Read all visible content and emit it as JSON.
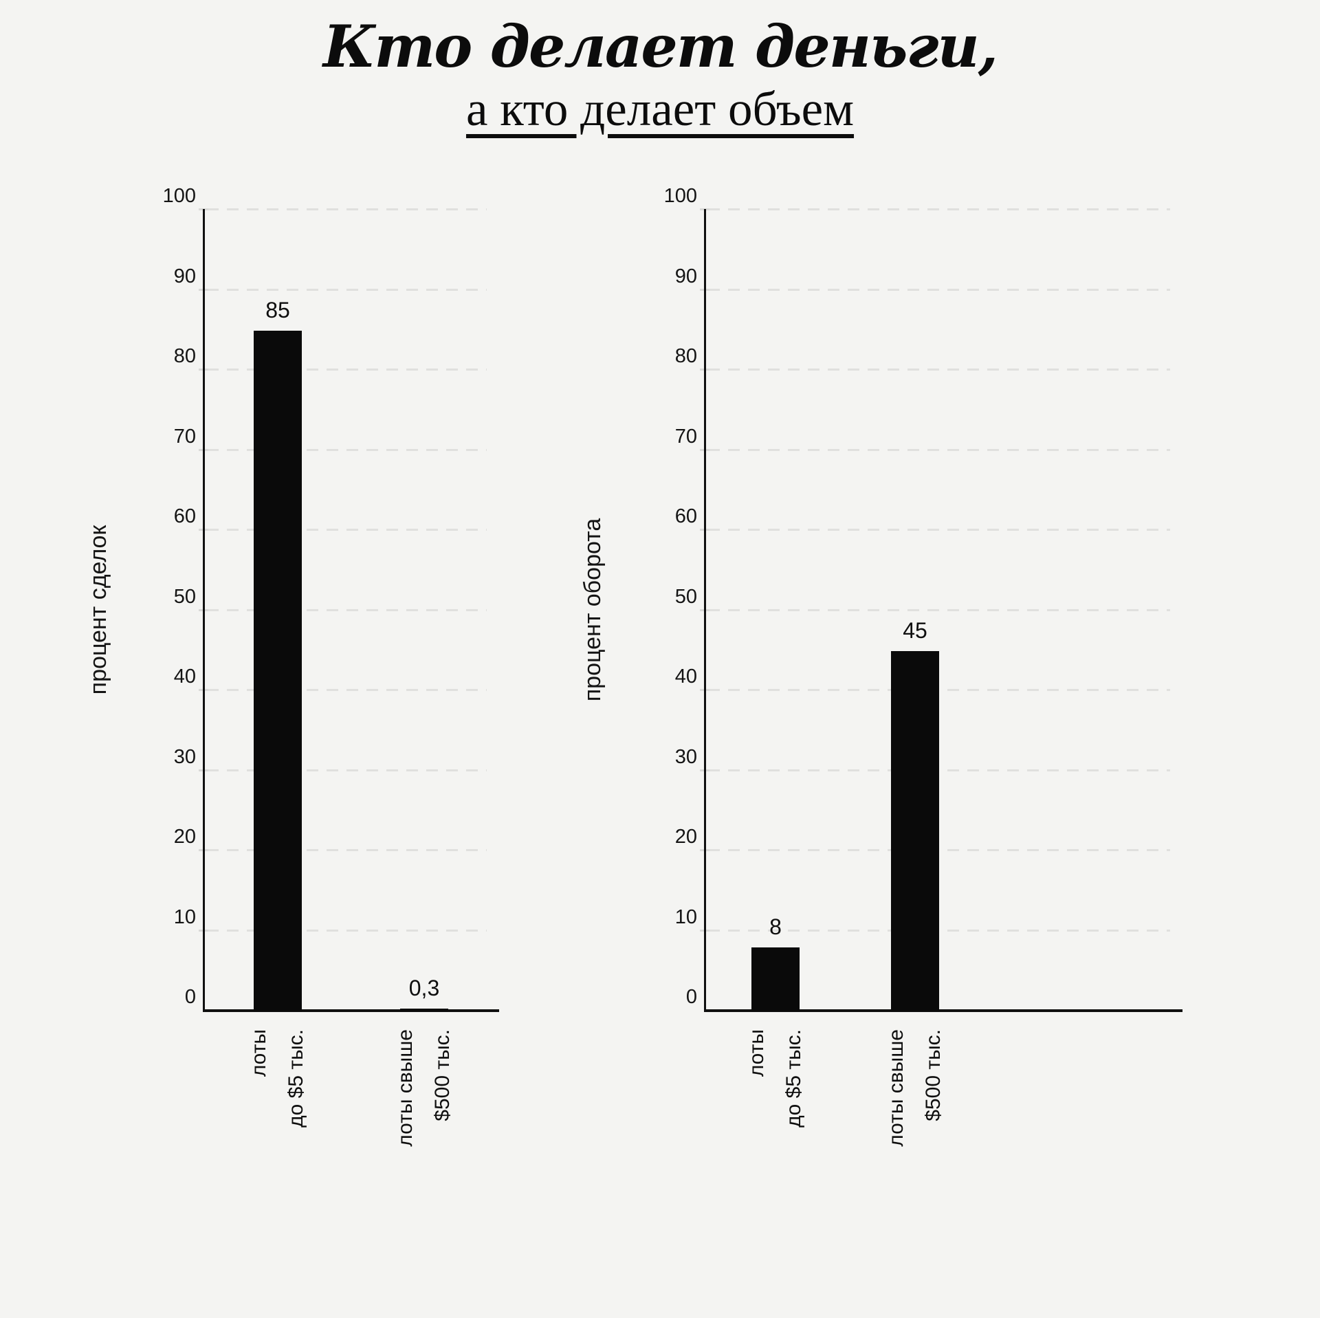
{
  "title": {
    "line1": "Кто делает деньги,",
    "line2": "а кто делает объем"
  },
  "colors": {
    "background": "#f4f4f2",
    "bar": "#0a0a0a",
    "axis": "#101010",
    "gridline": "#e0e0de"
  },
  "charts": [
    {
      "name": "deals-share",
      "ylabel": "процент сделок",
      "yticks": [
        100,
        90,
        80,
        70,
        60,
        50,
        40,
        30,
        20,
        10,
        0
      ],
      "bars": [
        {
          "category_lines": [
            "лоты",
            "до $5 тыс."
          ],
          "value": 85,
          "value_label": "85"
        },
        {
          "category_lines": [
            "лоты свыше",
            "$500 тыс."
          ],
          "value": 0.3,
          "value_label": "0,3"
        }
      ]
    },
    {
      "name": "turnover-share",
      "ylabel": "процент оборота",
      "yticks": [
        100,
        90,
        80,
        70,
        60,
        50,
        40,
        30,
        20,
        10,
        0
      ],
      "bars": [
        {
          "category_lines": [
            "лоты",
            "до $5 тыс."
          ],
          "value": 8,
          "value_label": "8"
        },
        {
          "category_lines": [
            "лоты свыше",
            "$500 тыс."
          ],
          "value": 45,
          "value_label": "45"
        }
      ]
    }
  ],
  "chart_data": [
    {
      "type": "bar",
      "title": "Кто делает деньги, а кто делает объем",
      "categories": [
        "лоты до $5 тыс.",
        "лоты свыше $500 тыс."
      ],
      "values": [
        85,
        0.3
      ],
      "value_labels": [
        "85",
        "0,3"
      ],
      "xlabel": "",
      "ylabel": "процент сделок",
      "ylim": [
        0,
        100
      ],
      "ytick_step": 10,
      "grid": "horizontal dashed",
      "bar_color": "#0a0a0a",
      "legend": "none"
    },
    {
      "type": "bar",
      "title": "Кто делает деньги, а кто делает объем",
      "categories": [
        "лоты до $5 тыс.",
        "лоты свыше $500 тыс."
      ],
      "values": [
        8,
        45
      ],
      "value_labels": [
        "8",
        "45"
      ],
      "xlabel": "",
      "ylabel": "процент оборота",
      "ylim": [
        0,
        100
      ],
      "ytick_step": 10,
      "grid": "horizontal dashed",
      "bar_color": "#0a0a0a",
      "legend": "none"
    }
  ]
}
